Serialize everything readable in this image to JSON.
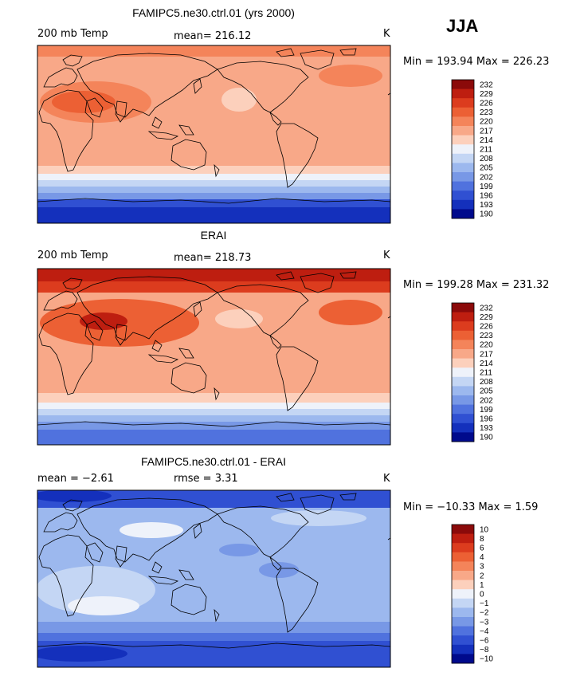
{
  "season": "JJA",
  "panels": [
    {
      "title": "FAMIPC5.ne30.ctrl.01 (yrs 2000)",
      "left_label": "200 mb Temp",
      "center_label": "mean=  216.12",
      "units": "K",
      "minmax": "Min = 193.94  Max = 226.23",
      "palette": "temp",
      "colorbar_labels": [
        "232",
        "229",
        "226",
        "223",
        "220",
        "217",
        "214",
        "211",
        "208",
        "205",
        "202",
        "199",
        "196",
        "193",
        "190"
      ]
    },
    {
      "title": "ERAI",
      "left_label": "200 mb Temp",
      "center_label": "mean=  218.73",
      "units": "K",
      "minmax": "Min = 199.28  Max = 231.32",
      "palette": "temp",
      "colorbar_labels": [
        "232",
        "229",
        "226",
        "223",
        "220",
        "217",
        "214",
        "211",
        "208",
        "205",
        "202",
        "199",
        "196",
        "193",
        "190"
      ]
    },
    {
      "title": "FAMIPC5.ne30.ctrl.01 - ERAI",
      "left_label": "mean =   −2.61",
      "center_label": "rmse =    3.31",
      "units": "K",
      "minmax": "Min = −10.33  Max =    1.59",
      "palette": "diff",
      "colorbar_labels": [
        "10",
        "8",
        "6",
        "4",
        "3",
        "2",
        "1",
        "0",
        "−1",
        "−2",
        "−3",
        "−4",
        "−6",
        "−8",
        "−10"
      ]
    }
  ],
  "colors": {
    "temp": [
      "#8b0a0a",
      "#be1e10",
      "#dc3c1e",
      "#ec6034",
      "#f4845a",
      "#f8a888",
      "#fcd0bc",
      "#eef2fa",
      "#c4d6f4",
      "#9cb8ee",
      "#7898e6",
      "#5072de",
      "#3050d2",
      "#1430bc",
      "#000a8c"
    ],
    "diff": [
      "#8b0a0a",
      "#be1e10",
      "#dc3c1e",
      "#ec6034",
      "#f4845a",
      "#f8a888",
      "#fcd0bc",
      "#eef2fa",
      "#c4d6f4",
      "#9cb8ee",
      "#7898e6",
      "#5072de",
      "#3050d2",
      "#1430bc",
      "#000a8c"
    ]
  }
}
